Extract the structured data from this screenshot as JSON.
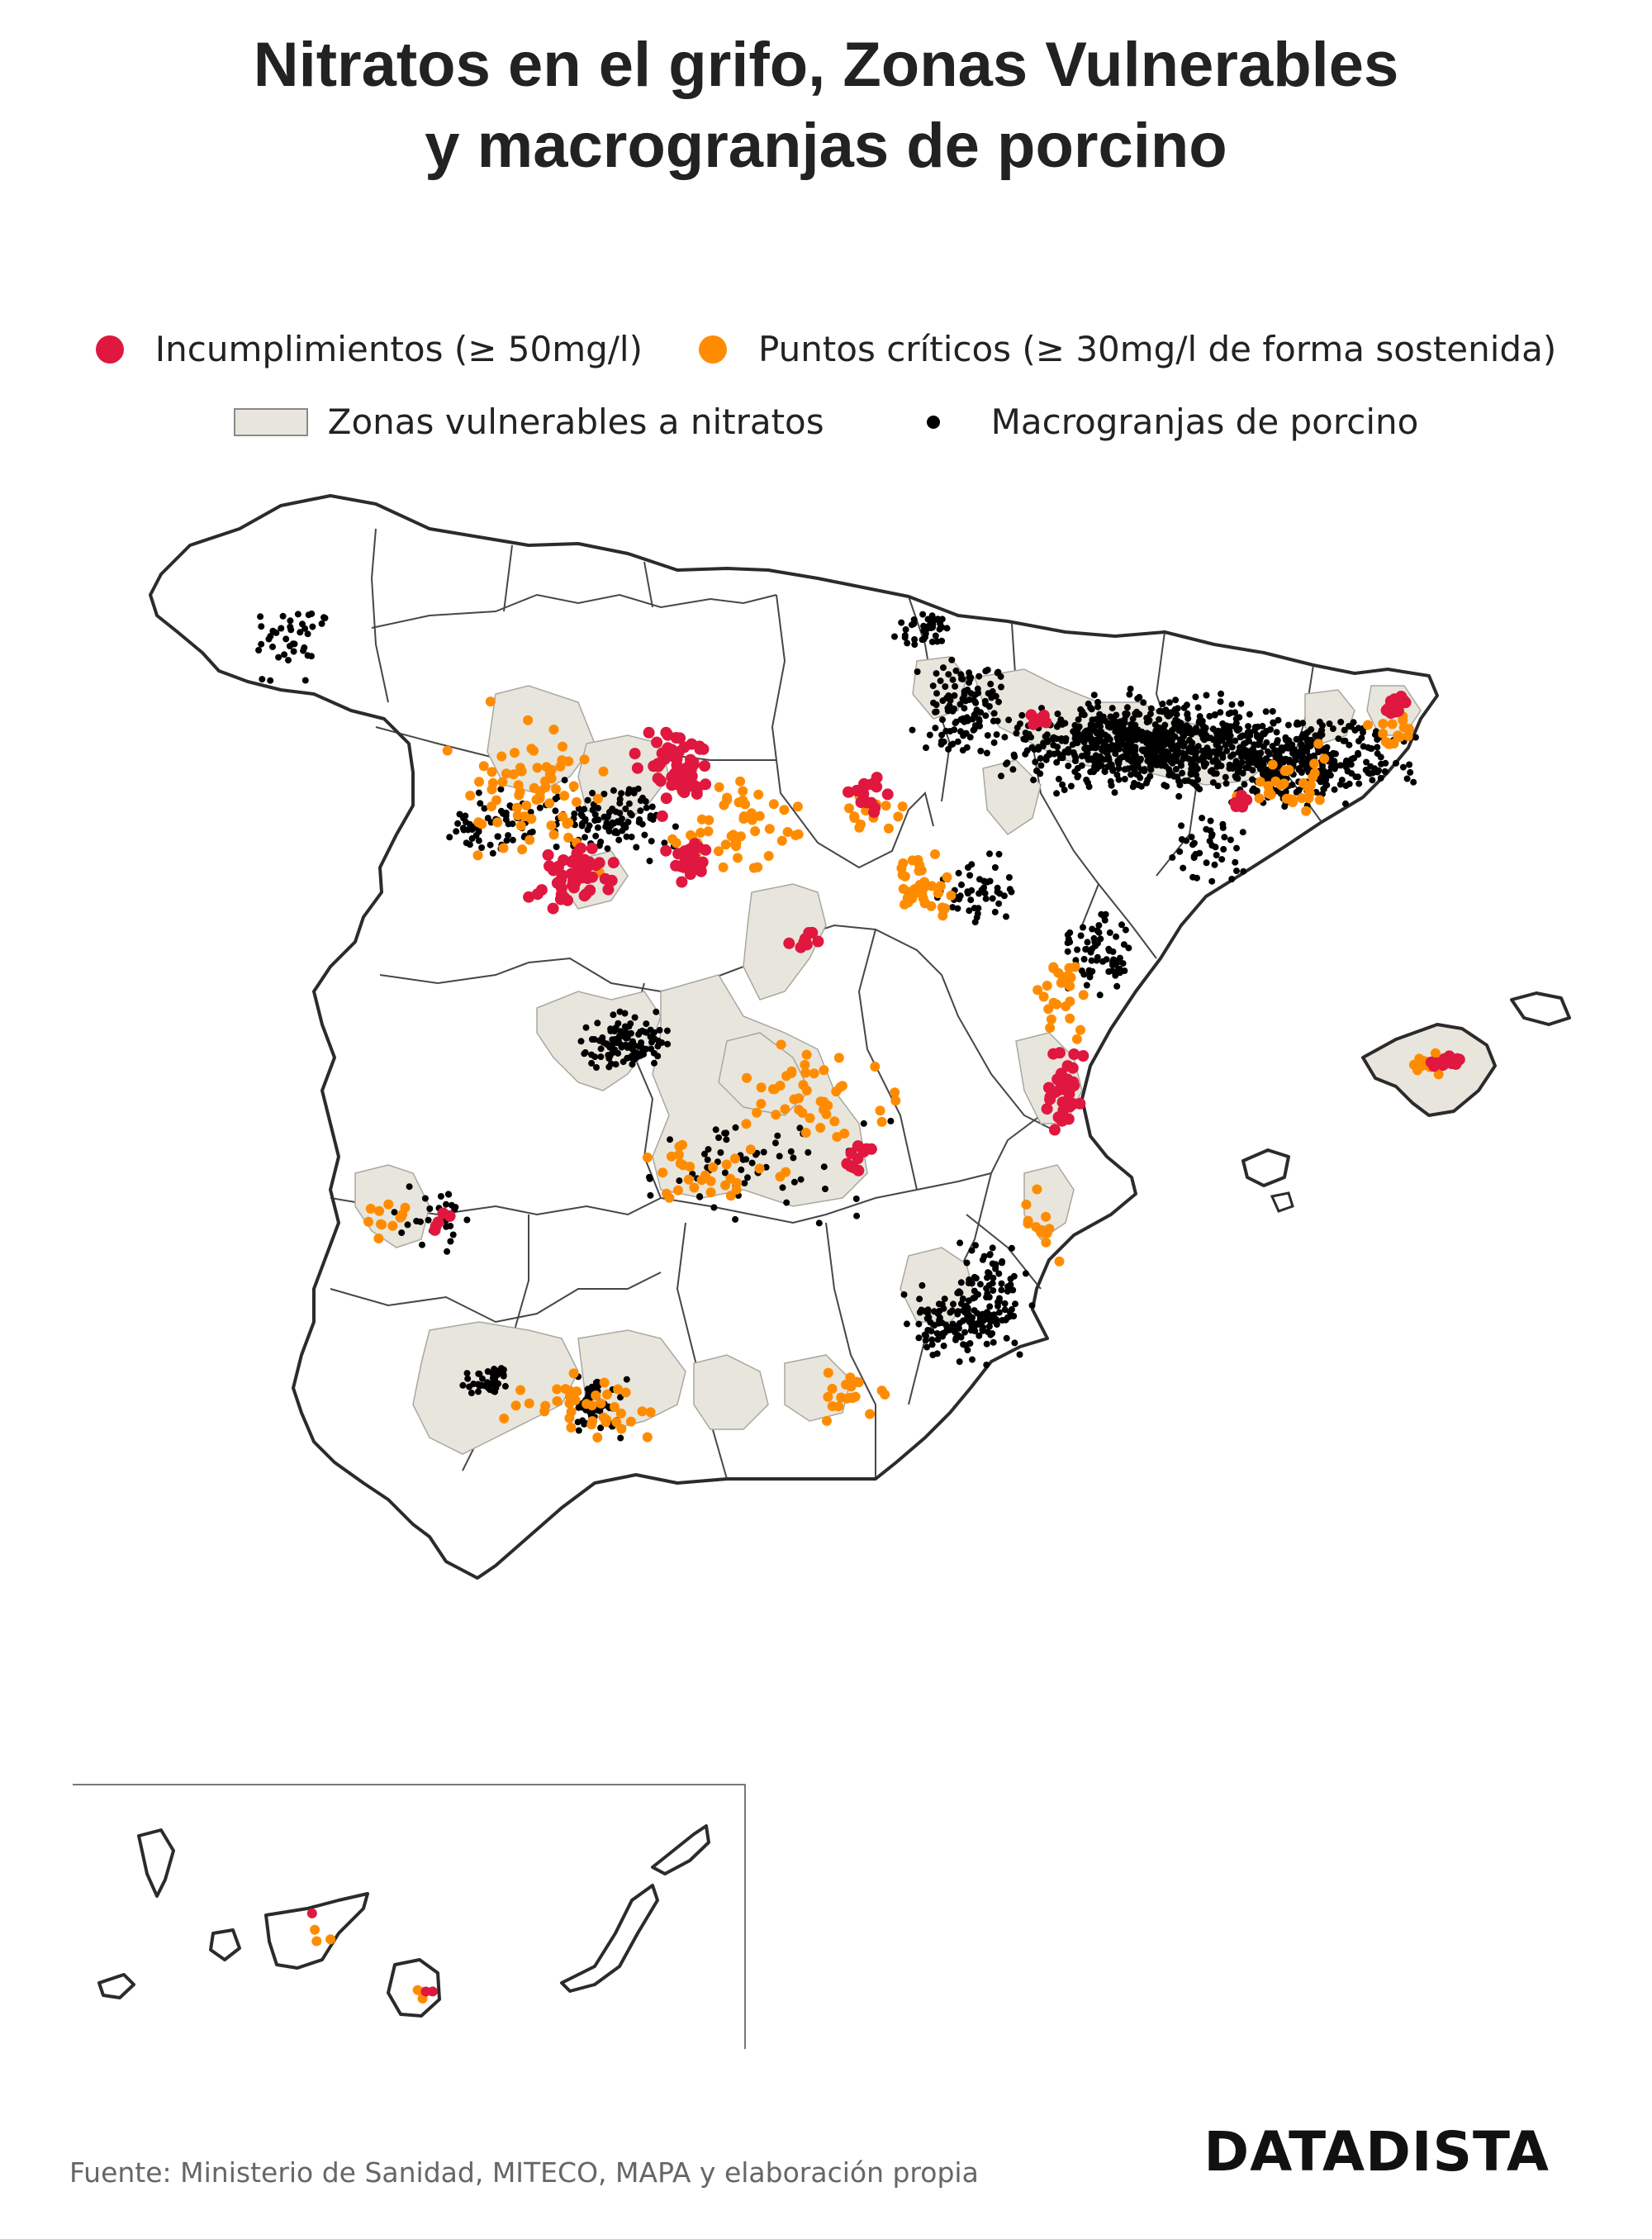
{
  "title": {
    "line1": "Nitratos en el grifo, Zonas Vulnerables",
    "line2": "y macrogranjas de porcino"
  },
  "legend": {
    "incumplimientos": {
      "label": "Incumplimientos (≥ 50mg/l)",
      "color": "#e0173f",
      "icon": "red-dot"
    },
    "puntos_criticos": {
      "label": "Puntos críticos (≥ 30mg/l de forma sostenida)",
      "color": "#ff8c00",
      "icon": "orange-dot"
    },
    "zonas": {
      "label": "Zonas vulnerables a nitratos",
      "color": "#e8e6dc",
      "icon": "beige-rectangle"
    },
    "macrogranjas": {
      "label": "Macrogranjas de porcino",
      "color": "#000000",
      "icon": "black-dot"
    }
  },
  "colors": {
    "border": "#2b2b2b",
    "province_lines": "#333333",
    "land": "#ffffff",
    "zone_fill": "#e8e6dc",
    "zone_stroke": "#a8a8a0"
  },
  "map": {
    "region": "Península Ibérica (España), Islas Baleares e Islas Canarias",
    "inset": "Islas Canarias"
  },
  "source": "Fuente: Ministerio de Sanidad, MITECO, MAPA y elaboración propia",
  "brand": "DATADISTA"
}
